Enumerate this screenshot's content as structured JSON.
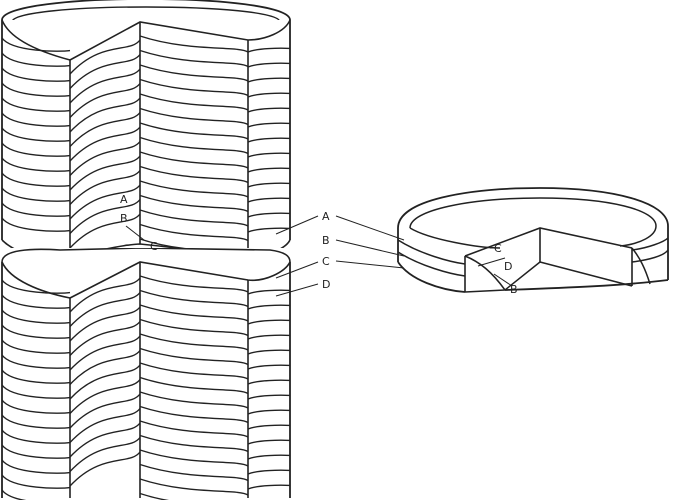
{
  "labels": {
    "right_side": [
      "A",
      "B",
      "C",
      "D"
    ],
    "cut_face_upper": [
      "A",
      "B",
      "C"
    ],
    "small_ring": [
      "C",
      "D",
      "B"
    ]
  },
  "colors": {
    "stroke": "#222222",
    "background": "#ffffff"
  }
}
